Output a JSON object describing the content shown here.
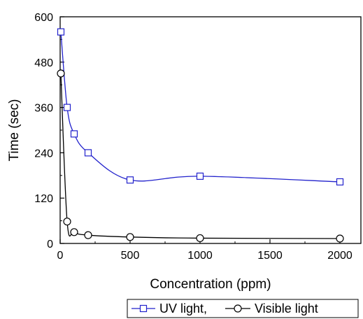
{
  "chart_data": {
    "type": "scatter",
    "xlabel": "Concentration (ppm)",
    "ylabel": "Time (sec)",
    "xlim": [
      0,
      2150
    ],
    "ylim": [
      0,
      600
    ],
    "x_ticks": [
      0,
      500,
      1000,
      1500,
      2000
    ],
    "y_ticks": [
      0,
      120,
      240,
      360,
      480,
      600
    ],
    "grid": false,
    "legend_position": "bottom-right",
    "series": [
      {
        "name": "UV light,",
        "marker": "square",
        "color": "#2222cc",
        "x": [
          5,
          50,
          100,
          200,
          500,
          1000,
          2000
        ],
        "y": [
          560,
          360,
          290,
          240,
          168,
          178,
          163
        ]
      },
      {
        "name": "Visible light",
        "marker": "circle",
        "color": "#000000",
        "x": [
          5,
          50,
          100,
          200,
          500,
          1000,
          2000
        ],
        "y": [
          450,
          58,
          30,
          22,
          17,
          14,
          13
        ]
      }
    ]
  }
}
